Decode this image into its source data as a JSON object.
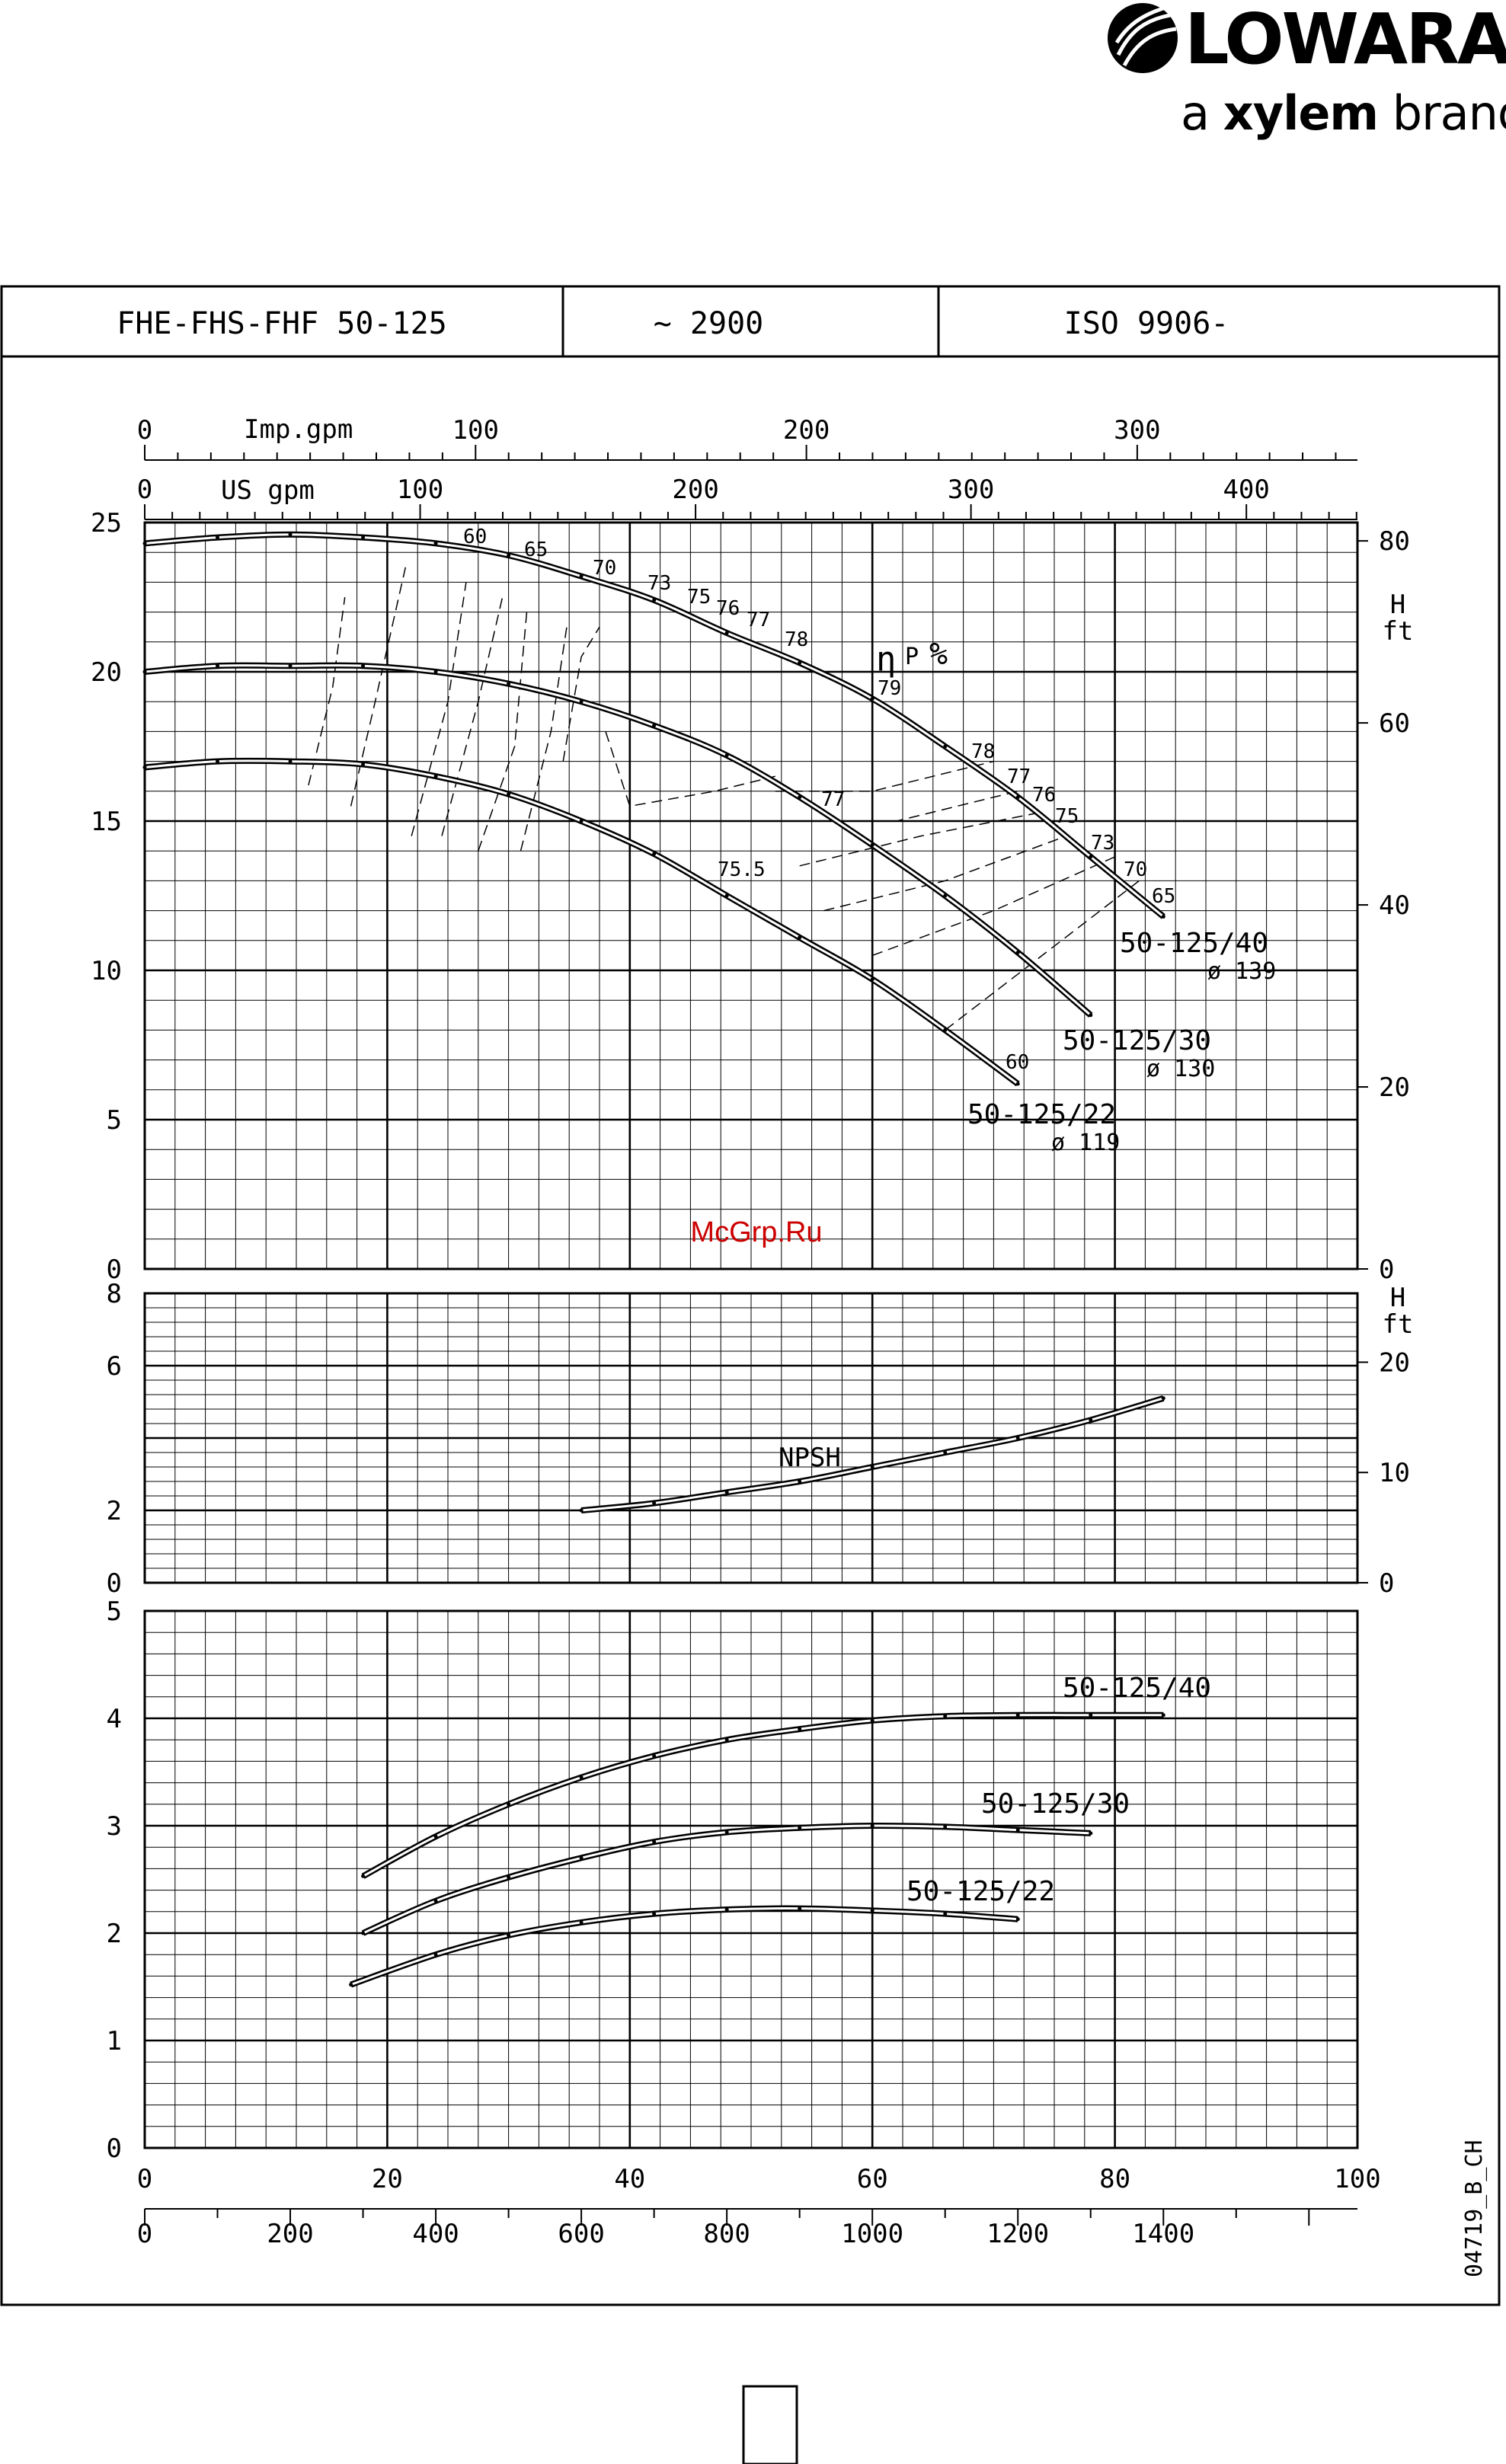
{
  "brand": {
    "name": "LOWARA",
    "tag_prefix": "a",
    "tag_bold": "xylem",
    "tag_suffix": "brand",
    "icon": "lowara-logo-icon"
  },
  "header": {
    "model": "FHE-FHS-FHF 50-125",
    "speed": "~ 2900",
    "standard": "ISO 9906-"
  },
  "watermark": "McGrp.Ru",
  "drawing_code": "04719_B_CH",
  "colors": {
    "ink": "#000000",
    "watermark": "#cc0000"
  },
  "chart_data": [
    {
      "type": "line",
      "panel": "head",
      "top_axis_labels": {
        "imp": "Imp.gpm",
        "us": "US gpm"
      },
      "top_ticks_imp": [
        "0",
        "100",
        "200",
        "300"
      ],
      "top_ticks_us": [
        "0",
        "100",
        "200",
        "300",
        "400"
      ],
      "xlim": [
        0,
        100
      ],
      "ylim": [
        0,
        25
      ],
      "y_ticks": [
        "0",
        "5",
        "10",
        "15",
        "20",
        "25"
      ],
      "right_axis_label": [
        "H",
        "ft"
      ],
      "right_ticks": [
        "0",
        "20",
        "40",
        "60",
        "80"
      ],
      "eff_label": {
        "eta": "η",
        "sub": "P",
        "unit": "%"
      },
      "series": [
        {
          "name": "50-125/40",
          "label2": "ø 139",
          "x": [
            0,
            6,
            12,
            18,
            24,
            30,
            36,
            42,
            48,
            54,
            60,
            66,
            72,
            78,
            84
          ],
          "y": [
            24.3,
            24.5,
            24.6,
            24.5,
            24.3,
            23.9,
            23.2,
            22.4,
            21.3,
            20.3,
            19.1,
            17.5,
            15.8,
            13.8,
            11.8
          ]
        },
        {
          "name": "50-125/30",
          "label2": "ø 130",
          "x": [
            0,
            6,
            12,
            18,
            24,
            30,
            36,
            42,
            48,
            54,
            60,
            66,
            72,
            78
          ],
          "y": [
            20.0,
            20.2,
            20.2,
            20.2,
            20.0,
            19.6,
            19.0,
            18.2,
            17.2,
            15.8,
            14.2,
            12.5,
            10.6,
            8.5
          ]
        },
        {
          "name": "50-125/22",
          "label2": "ø 119",
          "x": [
            0,
            6,
            12,
            18,
            24,
            30,
            36,
            42,
            48,
            54,
            60,
            66,
            72
          ],
          "y": [
            16.8,
            17.0,
            17.0,
            16.9,
            16.5,
            15.9,
            15.0,
            13.9,
            12.5,
            11.1,
            9.7,
            8.0,
            6.2
          ]
        }
      ],
      "efficiency_labels": [
        "60",
        "65",
        "70",
        "73",
        "75",
        "76",
        "77",
        "78",
        "79",
        "78",
        "77",
        "76",
        "75",
        "73",
        "70",
        "65",
        "77",
        "75.5",
        "60"
      ]
    },
    {
      "type": "line",
      "panel": "npsh",
      "ylim": [
        0,
        8
      ],
      "y_ticks": [
        "0",
        "2",
        "6",
        "8"
      ],
      "right_axis_label": [
        "H",
        "ft"
      ],
      "right_ticks": [
        "0",
        "10",
        "20"
      ],
      "series": [
        {
          "name": "NPSH",
          "x": [
            36,
            42,
            48,
            54,
            60,
            66,
            72,
            78,
            84
          ],
          "y": [
            2.0,
            2.2,
            2.5,
            2.8,
            3.2,
            3.6,
            4.0,
            4.5,
            5.1
          ]
        }
      ]
    },
    {
      "type": "line",
      "panel": "power",
      "ylim": [
        0,
        5
      ],
      "y_ticks": [
        "0",
        "1",
        "2",
        "3",
        "4",
        "5"
      ],
      "x_ticks": [
        "0",
        "20",
        "40",
        "60",
        "80",
        "100"
      ],
      "bottom_ticks_2": [
        "0",
        "200",
        "400",
        "600",
        "800",
        "1000",
        "1200",
        "1400"
      ],
      "series": [
        {
          "name": "50-125/40",
          "x": [
            18,
            24,
            30,
            36,
            42,
            48,
            54,
            60,
            66,
            72,
            78,
            84
          ],
          "y": [
            2.53,
            2.9,
            3.2,
            3.45,
            3.65,
            3.8,
            3.9,
            3.98,
            4.02,
            4.03,
            4.03,
            4.03
          ]
        },
        {
          "name": "50-125/30",
          "x": [
            18,
            24,
            30,
            36,
            42,
            48,
            54,
            60,
            66,
            72,
            78
          ],
          "y": [
            2.0,
            2.3,
            2.52,
            2.7,
            2.85,
            2.94,
            2.98,
            3.0,
            2.99,
            2.96,
            2.93
          ]
        },
        {
          "name": "50-125/22",
          "x": [
            17,
            24,
            30,
            36,
            42,
            48,
            54,
            60,
            66,
            72
          ],
          "y": [
            1.52,
            1.8,
            1.98,
            2.1,
            2.18,
            2.22,
            2.23,
            2.21,
            2.18,
            2.13
          ]
        }
      ]
    }
  ]
}
